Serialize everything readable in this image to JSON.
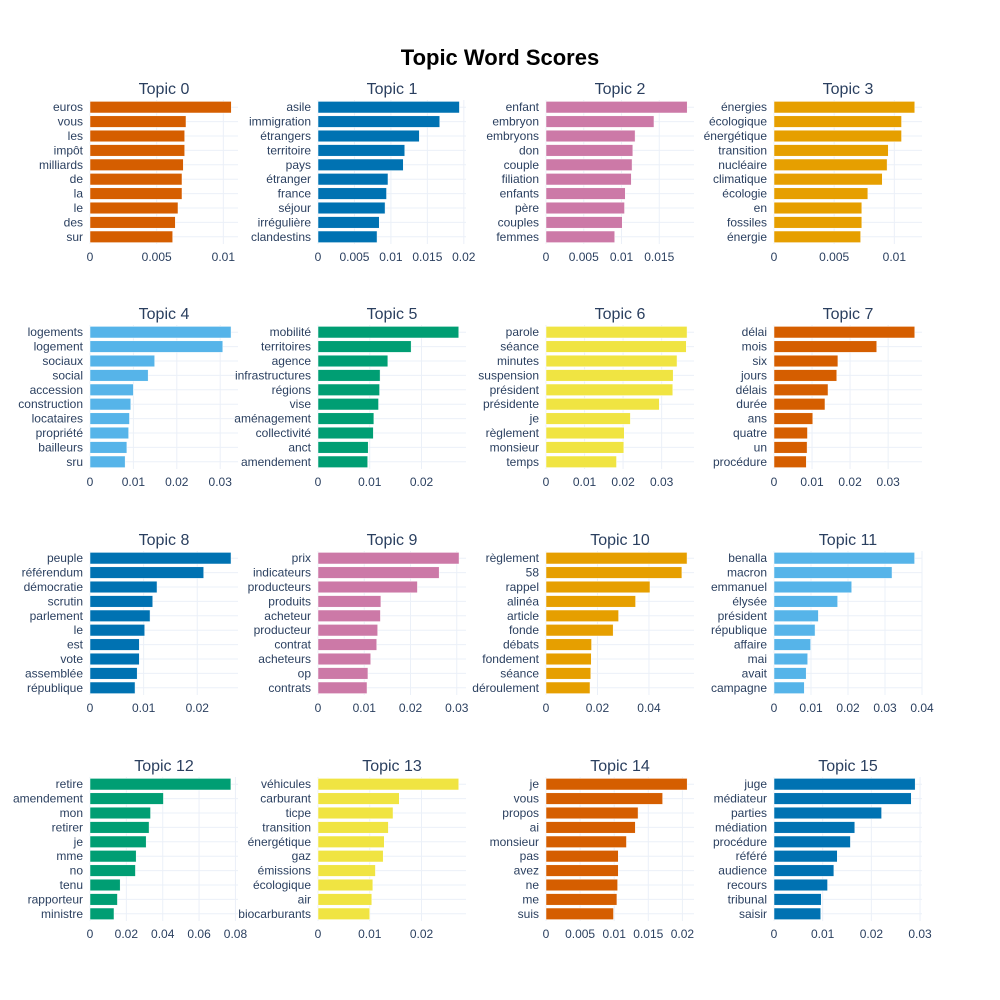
{
  "title": "Topic Word Scores",
  "chart_data": [
    {
      "type": "bar",
      "orientation": "horizontal",
      "title": "Topic 0",
      "color": "#D55E00",
      "categories": [
        "euros",
        "vous",
        "les",
        "impôt",
        "milliards",
        "de",
        "la",
        "le",
        "des",
        "sur"
      ],
      "values": [
        0.0106,
        0.0072,
        0.0071,
        0.0071,
        0.007,
        0.0069,
        0.0069,
        0.0066,
        0.0064,
        0.0062
      ],
      "xticks": [
        0,
        0.005,
        0.01
      ],
      "xtick_labels": [
        "0",
        "0.005",
        "0.01"
      ],
      "xlim": [
        0,
        0.0111
      ]
    },
    {
      "type": "bar",
      "orientation": "horizontal",
      "title": "Topic 1",
      "color": "#0072B2",
      "categories": [
        "asile",
        "immigration",
        "étrangers",
        "territoire",
        "pays",
        "étranger",
        "france",
        "séjour",
        "irrégulière",
        "clandestins"
      ],
      "values": [
        0.0194,
        0.0167,
        0.0139,
        0.0119,
        0.0117,
        0.0096,
        0.0094,
        0.0092,
        0.0084,
        0.0081
      ],
      "xticks": [
        0,
        0.005,
        0.01,
        0.015,
        0.02
      ],
      "xtick_labels": [
        "0",
        "0.005",
        "0.01",
        "0.015",
        "0.02"
      ],
      "xlim": [
        0,
        0.0203
      ]
    },
    {
      "type": "bar",
      "orientation": "horizontal",
      "title": "Topic 2",
      "color": "#CC79A7",
      "categories": [
        "enfant",
        "embryon",
        "embryons",
        "don",
        "couple",
        "filiation",
        "enfants",
        "père",
        "couples",
        "femmes"
      ],
      "values": [
        0.0187,
        0.0143,
        0.0118,
        0.0115,
        0.0114,
        0.0113,
        0.0105,
        0.0104,
        0.0101,
        0.0091
      ],
      "xticks": [
        0,
        0.005,
        0.01,
        0.015
      ],
      "xtick_labels": [
        "0",
        "0.005",
        "0.01",
        "0.015"
      ],
      "xlim": [
        0,
        0.0196
      ]
    },
    {
      "type": "bar",
      "orientation": "horizontal",
      "title": "Topic 3",
      "color": "#E69F00",
      "categories": [
        "énergies",
        "écologique",
        "énergétique",
        "transition",
        "nucléaire",
        "climatique",
        "écologie",
        "en",
        "fossiles",
        "énergie"
      ],
      "values": [
        0.0117,
        0.0106,
        0.0106,
        0.0095,
        0.0094,
        0.009,
        0.0078,
        0.0073,
        0.0073,
        0.0072
      ],
      "xticks": [
        0,
        0.005,
        0.01
      ],
      "xtick_labels": [
        "0",
        "0.005",
        "0.01"
      ],
      "xlim": [
        0,
        0.0123
      ]
    },
    {
      "type": "bar",
      "orientation": "horizontal",
      "title": "Topic 4",
      "color": "#56B4E9",
      "categories": [
        "logements",
        "logement",
        "sociaux",
        "social",
        "accession",
        "construction",
        "locataires",
        "propriété",
        "bailleurs",
        "sru"
      ],
      "values": [
        0.0325,
        0.0306,
        0.0149,
        0.0134,
        0.01,
        0.0094,
        0.0091,
        0.0089,
        0.0085,
        0.0081
      ],
      "xticks": [
        0,
        0.01,
        0.02,
        0.03
      ],
      "xtick_labels": [
        "0",
        "0.01",
        "0.02",
        "0.03"
      ],
      "xlim": [
        0,
        0.0341
      ]
    },
    {
      "type": "bar",
      "orientation": "horizontal",
      "title": "Topic 5",
      "color": "#009E73",
      "categories": [
        "mobilité",
        "territoires",
        "agence",
        "infrastructures",
        "régions",
        "vise",
        "aménagement",
        "collectivité",
        "anct",
        "amendement"
      ],
      "values": [
        0.0272,
        0.018,
        0.0135,
        0.012,
        0.0119,
        0.0117,
        0.0108,
        0.0107,
        0.0097,
        0.0096
      ],
      "xticks": [
        0,
        0.01,
        0.02
      ],
      "xtick_labels": [
        "0",
        "0.01",
        "0.02"
      ],
      "xlim": [
        0,
        0.0286
      ]
    },
    {
      "type": "bar",
      "orientation": "horizontal",
      "title": "Topic 6",
      "color": "#F0E442",
      "categories": [
        "parole",
        "séance",
        "minutes",
        "suspension",
        "président",
        "présidente",
        "je",
        "règlement",
        "monsieur",
        "temps"
      ],
      "values": [
        0.0366,
        0.0364,
        0.034,
        0.033,
        0.0329,
        0.0294,
        0.0219,
        0.0203,
        0.0202,
        0.0183
      ],
      "xticks": [
        0,
        0.01,
        0.02,
        0.03
      ],
      "xtick_labels": [
        "0",
        "0.01",
        "0.02",
        "0.03"
      ],
      "xlim": [
        0,
        0.0384
      ]
    },
    {
      "type": "bar",
      "orientation": "horizontal",
      "title": "Topic 7",
      "color": "#D55E00",
      "categories": [
        "délai",
        "mois",
        "six",
        "jours",
        "délais",
        "durée",
        "ans",
        "quatre",
        "un",
        "procédure"
      ],
      "values": [
        0.037,
        0.027,
        0.0168,
        0.0165,
        0.0142,
        0.0134,
        0.0102,
        0.0088,
        0.0087,
        0.0085
      ],
      "xticks": [
        0,
        0.01,
        0.02,
        0.03
      ],
      "xtick_labels": [
        "0",
        "0.01",
        "0.02",
        "0.03"
      ],
      "xlim": [
        0,
        0.0389
      ]
    },
    {
      "type": "bar",
      "orientation": "horizontal",
      "title": "Topic 8",
      "color": "#0072B2",
      "categories": [
        "peuple",
        "référendum",
        "démocratie",
        "scrutin",
        "parlement",
        "le",
        "est",
        "vote",
        "assemblée",
        "république"
      ],
      "values": [
        0.0263,
        0.0212,
        0.0125,
        0.0117,
        0.0112,
        0.0102,
        0.0092,
        0.0092,
        0.0088,
        0.0084
      ],
      "xticks": [
        0,
        0.01,
        0.02
      ],
      "xtick_labels": [
        "0",
        "0.01",
        "0.02"
      ],
      "xlim": [
        0,
        0.0276
      ]
    },
    {
      "type": "bar",
      "orientation": "horizontal",
      "title": "Topic 9",
      "color": "#CC79A7",
      "categories": [
        "prix",
        "indicateurs",
        "producteurs",
        "produits",
        "acheteur",
        "producteur",
        "contrat",
        "acheteurs",
        "op",
        "contrats"
      ],
      "values": [
        0.0305,
        0.0262,
        0.0215,
        0.0136,
        0.0135,
        0.0129,
        0.0127,
        0.0114,
        0.0108,
        0.0106
      ],
      "xticks": [
        0,
        0.01,
        0.02,
        0.03
      ],
      "xtick_labels": [
        "0",
        "0.01",
        "0.02",
        "0.03"
      ],
      "xlim": [
        0,
        0.032
      ]
    },
    {
      "type": "bar",
      "orientation": "horizontal",
      "title": "Topic 10",
      "color": "#E69F00",
      "categories": [
        "règlement",
        "58",
        "rappel",
        "alinéa",
        "article",
        "fonde",
        "débats",
        "fondement",
        "séance",
        "déroulement"
      ],
      "values": [
        0.0548,
        0.0528,
        0.0404,
        0.0348,
        0.0282,
        0.0261,
        0.0177,
        0.0176,
        0.0174,
        0.0171
      ],
      "xticks": [
        0,
        0.02,
        0.04
      ],
      "xtick_labels": [
        "0",
        "0.02",
        "0.04"
      ],
      "xlim": [
        0,
        0.0575
      ]
    },
    {
      "type": "bar",
      "orientation": "horizontal",
      "title": "Topic 11",
      "color": "#56B4E9",
      "categories": [
        "benalla",
        "macron",
        "emmanuel",
        "élysée",
        "président",
        "république",
        "affaire",
        "mai",
        "avait",
        "campagne"
      ],
      "values": [
        0.038,
        0.0319,
        0.021,
        0.0172,
        0.012,
        0.0111,
        0.0099,
        0.0091,
        0.0087,
        0.0082
      ],
      "xticks": [
        0,
        0.01,
        0.02,
        0.03,
        0.04
      ],
      "xtick_labels": [
        "0",
        "0.01",
        "0.02",
        "0.03",
        "0.04"
      ],
      "xlim": [
        0,
        0.04
      ]
    },
    {
      "type": "bar",
      "orientation": "horizontal",
      "title": "Topic 12",
      "color": "#009E73",
      "categories": [
        "retire",
        "amendement",
        "mon",
        "retirer",
        "je",
        "mme",
        "no",
        "tenu",
        "rapporteur",
        "ministre"
      ],
      "values": [
        0.0775,
        0.0404,
        0.0333,
        0.0325,
        0.0309,
        0.0254,
        0.025,
        0.0166,
        0.0151,
        0.0132
      ],
      "xticks": [
        0,
        0.02,
        0.04,
        0.06,
        0.08
      ],
      "xtick_labels": [
        "0",
        "0.02",
        "0.04",
        "0.06",
        "0.08"
      ],
      "xlim": [
        0,
        0.0814
      ]
    },
    {
      "type": "bar",
      "orientation": "horizontal",
      "title": "Topic 13",
      "color": "#F0E442",
      "categories": [
        "véhicules",
        "carburant",
        "ticpe",
        "transition",
        "énergétique",
        "gaz",
        "émissions",
        "écologique",
        "air",
        "biocarburants"
      ],
      "values": [
        0.0272,
        0.0157,
        0.0145,
        0.0136,
        0.0128,
        0.0126,
        0.0111,
        0.0106,
        0.0104,
        0.01
      ],
      "xticks": [
        0,
        0.01,
        0.02
      ],
      "xtick_labels": [
        "0",
        "0.01",
        "0.02"
      ],
      "xlim": [
        0,
        0.0286
      ]
    },
    {
      "type": "bar",
      "orientation": "horizontal",
      "title": "Topic 14",
      "color": "#D55E00",
      "categories": [
        "je",
        "vous",
        "propos",
        "ai",
        "monsieur",
        "pas",
        "avez",
        "ne",
        "me",
        "suis"
      ],
      "values": [
        0.0207,
        0.0171,
        0.0135,
        0.0131,
        0.0118,
        0.0106,
        0.0106,
        0.0105,
        0.0104,
        0.0099
      ],
      "xticks": [
        0,
        0.005,
        0.01,
        0.015,
        0.02
      ],
      "xtick_labels": [
        "0",
        "0.005",
        "0.01",
        "0.015",
        "0.02"
      ],
      "xlim": [
        0,
        0.0217
      ]
    },
    {
      "type": "bar",
      "orientation": "horizontal",
      "title": "Topic 15",
      "color": "#0072B2",
      "categories": [
        "juge",
        "médiateur",
        "parties",
        "médiation",
        "procédure",
        "référé",
        "audience",
        "recours",
        "tribunal",
        "saisir"
      ],
      "values": [
        0.029,
        0.0282,
        0.0221,
        0.0166,
        0.0157,
        0.013,
        0.0123,
        0.011,
        0.0097,
        0.0096
      ],
      "xticks": [
        0,
        0.01,
        0.02,
        0.03
      ],
      "xtick_labels": [
        "0",
        "0.01",
        "0.02",
        "0.03"
      ],
      "xlim": [
        0,
        0.0304
      ]
    }
  ]
}
